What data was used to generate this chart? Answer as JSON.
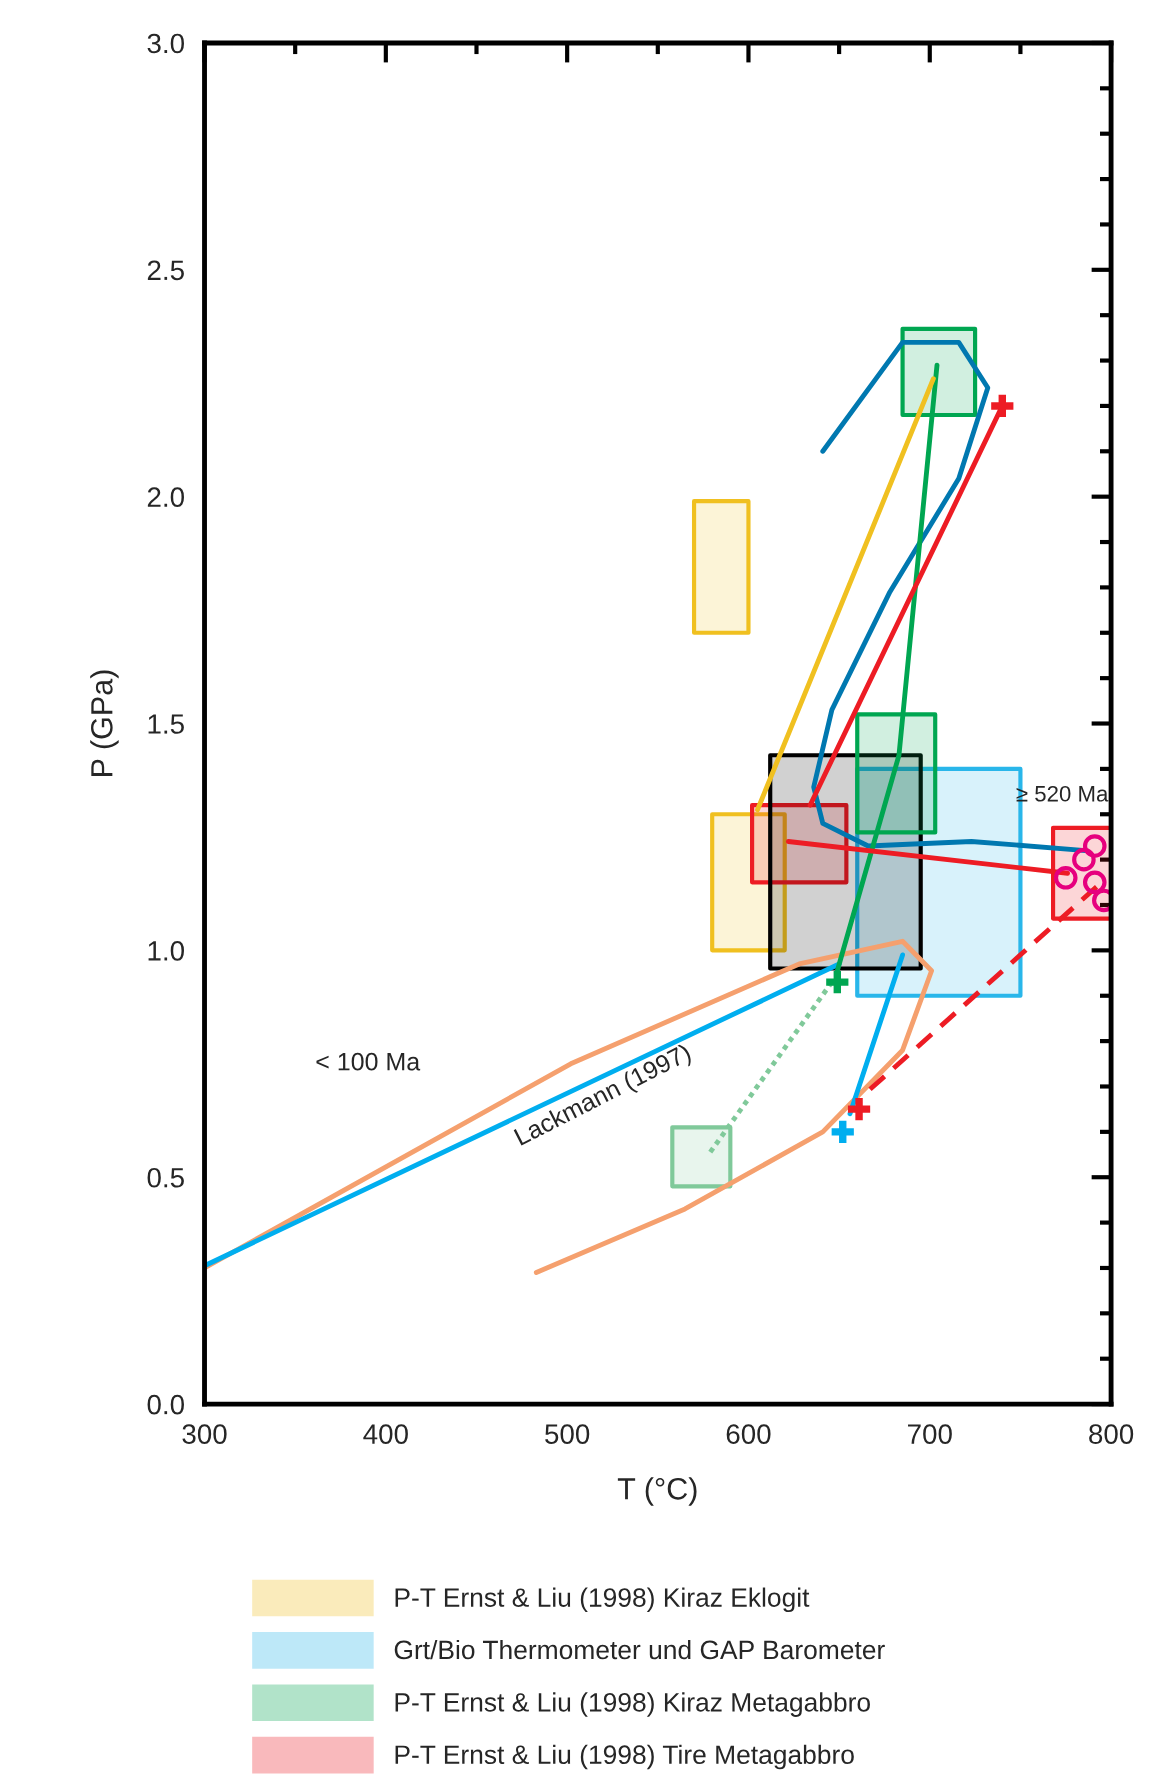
{
  "chart_data": {
    "type": "line",
    "xlabel": "T (°C)",
    "ylabel": "P (GPa)",
    "xlim": [
      300,
      800
    ],
    "ylim": [
      0,
      3
    ],
    "xticks": [
      300,
      400,
      500,
      600,
      700,
      800
    ],
    "yticks": [
      {
        "value": 0,
        "label": "0.0"
      },
      {
        "value": 0.5,
        "label": "0.5"
      },
      {
        "value": 1,
        "label": "1.0"
      },
      {
        "value": 1.5,
        "label": "1.5"
      },
      {
        "value": 2,
        "label": "2.0"
      },
      {
        "value": 2.5,
        "label": "2.5"
      },
      {
        "value": 3,
        "label": "3.0"
      }
    ],
    "grid": false,
    "legend": "bottom",
    "series": [
      {
        "name": "P-T Ernst & Liu (1998) Kiraz Eklogit",
        "color": "#f0c020",
        "x": [
          580,
          620
        ],
        "values": [
          null,
          null
        ],
        "lower": [
          1.0,
          1.0
        ],
        "upper": [
          1.3,
          1.3
        ]
      },
      {
        "name": "Grt/Bio Thermometer und GAP Barometer",
        "color": "#29b6ea",
        "x": [
          660,
          750
        ],
        "values": [
          null,
          null
        ],
        "lower": [
          0.9,
          0.9
        ],
        "upper": [
          1.4,
          1.4
        ]
      },
      {
        "name": "P-T Ernst & Liu (1998) Kiraz Metagabbro",
        "color": "#00a651",
        "x": [
          685,
          725
        ],
        "values": [
          null,
          null
        ],
        "lower": [
          2.18,
          2.18
        ],
        "upper": [
          2.37,
          2.37
        ]
      },
      {
        "name": "P-T Ernst & Liu (1998) Tire Metagabbro",
        "color": "#ed1c24",
        "x": [
          602,
          654
        ],
        "values": [
          null,
          null
        ],
        "lower": [
          1.15,
          1.15
        ],
        "upper": [
          1.32,
          1.32
        ]
      },
      {
        "color": "#f0c020",
        "x": [
          570,
          600
        ],
        "values": [
          null,
          null
        ],
        "lower": [
          1.7,
          1.7
        ],
        "upper": [
          1.99,
          1.99
        ]
      },
      {
        "color": "#000000",
        "x": [
          612,
          695
        ],
        "values": [
          null,
          null
        ],
        "lower": [
          0.96,
          0.96
        ],
        "upper": [
          1.43,
          1.43
        ]
      },
      {
        "color": "#00a651",
        "x": [
          660,
          703
        ],
        "values": [
          null,
          null
        ],
        "lower": [
          1.26,
          1.26
        ],
        "upper": [
          1.52,
          1.52
        ]
      },
      {
        "color": "#ed1c24",
        "x": [
          768,
          800
        ],
        "values": [
          null,
          null
        ],
        "lower": [
          1.07,
          1.07
        ],
        "upper": [
          1.27,
          1.27
        ]
      },
      {
        "color": "#80c99a",
        "x": [
          558,
          590
        ],
        "values": [
          null,
          null
        ],
        "lower": [
          0.48,
          0.48
        ],
        "upper": [
          0.61,
          0.61
        ]
      },
      {
        "color": "#0078b0",
        "x": [
          641,
          685,
          716,
          732,
          716,
          678,
          646,
          636,
          641,
          666,
          723,
          786
        ],
        "values": [
          2.1,
          2.34,
          2.34,
          2.24,
          2.04,
          1.79,
          1.53,
          1.36,
          1.28,
          1.23,
          1.24,
          1.22
        ]
      },
      {
        "color": "#f5a06e",
        "x": [
          300,
          502,
          628,
          685,
          701,
          685,
          641,
          565,
          483
        ],
        "values": [
          0.3,
          0.75,
          0.97,
          1.02,
          0.955,
          0.78,
          0.6,
          0.43,
          0.29
        ]
      },
      {
        "color": "#00aeef",
        "x": [
          300,
          650
        ],
        "values": [
          0.305,
          0.97
        ]
      },
      {
        "color": "#00aeef",
        "x": [
          685,
          656
        ],
        "values": [
          0.99,
          0.64
        ]
      },
      {
        "color": "#00a651",
        "x": [
          704,
          683,
          649
        ],
        "values": [
          2.29,
          1.43,
          0.955
        ]
      },
      {
        "color": "#f0c020",
        "x": [
          702,
          605
        ],
        "values": [
          2.26,
          1.31
        ]
      },
      {
        "color": "#ed1c24",
        "x": [
          740,
          634
        ],
        "values": [
          2.2,
          1.32
        ]
      },
      {
        "color": "#ed1c24",
        "x": [
          622,
          776
        ],
        "values": [
          1.24,
          1.17
        ]
      },
      {
        "color": "#ed1c24",
        "line_style": "dashed",
        "x": [
          792,
          666
        ],
        "values": [
          1.14,
          0.69
        ]
      },
      {
        "color": "#80c99a",
        "line_style": "dotted",
        "x": [
          646,
          578
        ],
        "values": [
          0.93,
          0.55
        ]
      },
      {
        "type": "scatter",
        "marker": "cross",
        "color": "#ed1c24",
        "x": [
          740,
          661
        ],
        "values": [
          2.2,
          0.65
        ]
      },
      {
        "type": "scatter",
        "marker": "cross",
        "color": "#00a651",
        "x": [
          649
        ],
        "values": [
          0.93
        ]
      },
      {
        "type": "scatter",
        "marker": "cross",
        "color": "#00aeef",
        "x": [
          652
        ],
        "values": [
          0.6
        ]
      },
      {
        "type": "scatter",
        "marker": "circle",
        "color": "#e6007e",
        "x": [
          775,
          785,
          791,
          791,
          796
        ],
        "values": [
          1.16,
          1.2,
          1.23,
          1.15,
          1.11
        ]
      }
    ],
    "annotations": [
      "≥ 520 Ma",
      "< 100 Ma",
      "Lackmann (1997)"
    ]
  }
}
